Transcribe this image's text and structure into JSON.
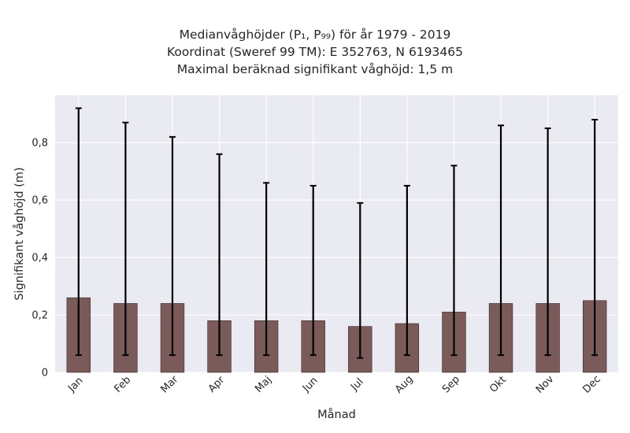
{
  "chart_data": {
    "type": "bar",
    "title_lines": [
      "Medianvåghöjder (P₁, P₉₉) för år 1979 - 2019",
      "Koordinat (Sweref 99 TM): E 352763, N 6193465",
      "Maximal beräknad signifikant våghöjd: 1,5 m"
    ],
    "xlabel": "Månad",
    "ylabel": "Signifikant våghöjd (m)",
    "categories": [
      "Jan",
      "Feb",
      "Mar",
      "Apr",
      "Maj",
      "Jun",
      "Jul",
      "Aug",
      "Sep",
      "Okt",
      "Nov",
      "Dec"
    ],
    "values": [
      0.26,
      0.24,
      0.24,
      0.18,
      0.18,
      0.18,
      0.16,
      0.17,
      0.21,
      0.24,
      0.24,
      0.25
    ],
    "error_low": [
      0.06,
      0.06,
      0.06,
      0.06,
      0.06,
      0.06,
      0.05,
      0.06,
      0.06,
      0.06,
      0.06,
      0.06
    ],
    "error_high": [
      0.92,
      0.87,
      0.82,
      0.76,
      0.66,
      0.65,
      0.59,
      0.65,
      0.72,
      0.86,
      0.85,
      0.88
    ],
    "ylim": [
      0,
      0.965
    ],
    "yticks": [
      0,
      0.2,
      0.4,
      0.6,
      0.8
    ],
    "ytick_labels": [
      "0",
      "0,2",
      "0,4",
      "0,6",
      "0,8"
    ],
    "grid": true,
    "bar_color": "#7b5a5a",
    "plot_background": "#eaeaf2"
  }
}
